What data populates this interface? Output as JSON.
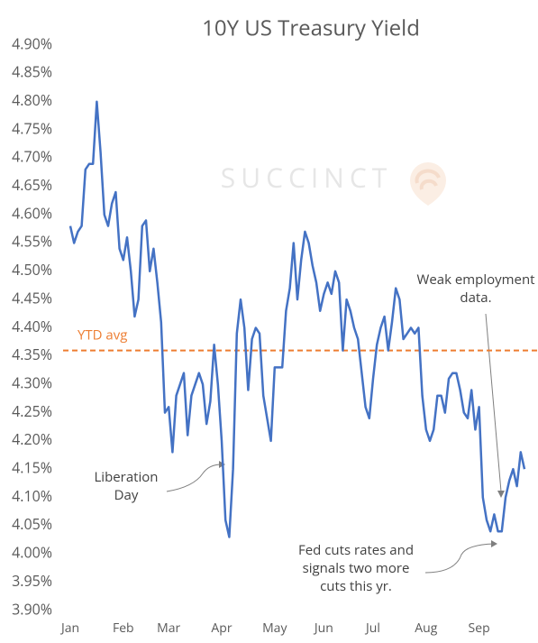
{
  "chart_data": {
    "type": "line",
    "title": "10Y US Treasury Yield",
    "watermark": "SUCCINCT",
    "categories": [
      "Jan",
      null,
      null,
      null,
      null,
      null,
      null,
      null,
      null,
      null,
      null,
      null,
      null,
      null,
      "Feb",
      null,
      null,
      null,
      null,
      null,
      null,
      null,
      null,
      null,
      null,
      null,
      "Mar",
      null,
      null,
      null,
      null,
      null,
      null,
      null,
      null,
      null,
      null,
      null,
      null,
      null,
      "Apr",
      null,
      null,
      null,
      null,
      null,
      null,
      null,
      null,
      null,
      null,
      null,
      null,
      null,
      "May",
      null,
      null,
      null,
      null,
      null,
      null,
      null,
      null,
      null,
      null,
      null,
      null,
      "Jun",
      null,
      null,
      null,
      null,
      null,
      null,
      null,
      null,
      null,
      null,
      null,
      null,
      "Jul",
      null,
      null,
      null,
      null,
      null,
      null,
      null,
      null,
      null,
      null,
      null,
      null,
      null,
      "Aug",
      null,
      null,
      null,
      null,
      null,
      null,
      null,
      null,
      null,
      null,
      null,
      null,
      null,
      "Sep",
      null,
      null,
      null,
      null,
      null,
      null,
      null,
      null,
      null,
      null,
      null,
      null
    ],
    "series": [
      {
        "name": "10Y US Treasury Yield",
        "color": "#4472c4",
        "values": [
          4.58,
          4.55,
          4.57,
          4.58,
          4.68,
          4.69,
          4.69,
          4.8,
          4.71,
          4.6,
          4.58,
          4.62,
          4.64,
          4.54,
          4.52,
          4.56,
          4.5,
          4.42,
          4.45,
          4.58,
          4.59,
          4.5,
          4.54,
          4.48,
          4.41,
          4.25,
          4.26,
          4.18,
          4.28,
          4.3,
          4.32,
          4.21,
          4.28,
          4.3,
          4.32,
          4.3,
          4.23,
          4.27,
          4.37,
          4.3,
          4.2,
          4.06,
          4.03,
          4.15,
          4.39,
          4.45,
          4.4,
          4.29,
          4.38,
          4.4,
          4.39,
          4.28,
          4.24,
          4.2,
          4.33,
          4.33,
          4.33,
          4.43,
          4.47,
          4.55,
          4.45,
          4.52,
          4.57,
          4.55,
          4.51,
          4.48,
          4.43,
          4.46,
          4.48,
          4.46,
          4.5,
          4.48,
          4.36,
          4.45,
          4.43,
          4.4,
          4.38,
          4.32,
          4.26,
          4.24,
          4.31,
          4.37,
          4.4,
          4.42,
          4.36,
          4.41,
          4.47,
          4.45,
          4.38,
          4.39,
          4.4,
          4.39,
          4.4,
          4.28,
          4.22,
          4.2,
          4.22,
          4.28,
          4.28,
          4.25,
          4.31,
          4.32,
          4.32,
          4.29,
          4.25,
          4.24,
          4.29,
          4.22,
          4.26,
          4.1,
          4.06,
          4.04,
          4.07,
          4.04,
          4.04,
          4.1,
          4.13,
          4.15,
          4.12,
          4.18,
          4.15
        ]
      }
    ],
    "ylim": [
      3.9,
      4.9
    ],
    "yticks": [
      {
        "value": 3.9,
        "label": "3.90%"
      },
      {
        "value": 3.95,
        "label": "3.95%"
      },
      {
        "value": 4.0,
        "label": "4.00%"
      },
      {
        "value": 4.05,
        "label": "4.05%"
      },
      {
        "value": 4.1,
        "label": "4.10%"
      },
      {
        "value": 4.15,
        "label": "4.15%"
      },
      {
        "value": 4.2,
        "label": "4.20%"
      },
      {
        "value": 4.25,
        "label": "4.25%"
      },
      {
        "value": 4.3,
        "label": "4.30%"
      },
      {
        "value": 4.35,
        "label": "4.35%"
      },
      {
        "value": 4.4,
        "label": "4.40%"
      },
      {
        "value": 4.45,
        "label": "4.45%"
      },
      {
        "value": 4.5,
        "label": "4.50%"
      },
      {
        "value": 4.55,
        "label": "4.55%"
      },
      {
        "value": 4.6,
        "label": "4.60%"
      },
      {
        "value": 4.65,
        "label": "4.65%"
      },
      {
        "value": 4.7,
        "label": "4.70%"
      },
      {
        "value": 4.75,
        "label": "4.75%"
      },
      {
        "value": 4.8,
        "label": "4.80%"
      },
      {
        "value": 4.85,
        "label": "4.85%"
      },
      {
        "value": 4.9,
        "label": "4.90%"
      }
    ],
    "grid": false,
    "ref_line": {
      "label": "YTD avg",
      "value": 4.36,
      "color": "#ed7d31"
    },
    "annotations": [
      {
        "lines": [
          "Liberation",
          "Day"
        ]
      },
      {
        "lines": [
          "Weak employment",
          "data."
        ]
      },
      {
        "lines": [
          "Fed cuts rates and",
          "signals two more",
          "cuts this yr."
        ]
      }
    ]
  }
}
